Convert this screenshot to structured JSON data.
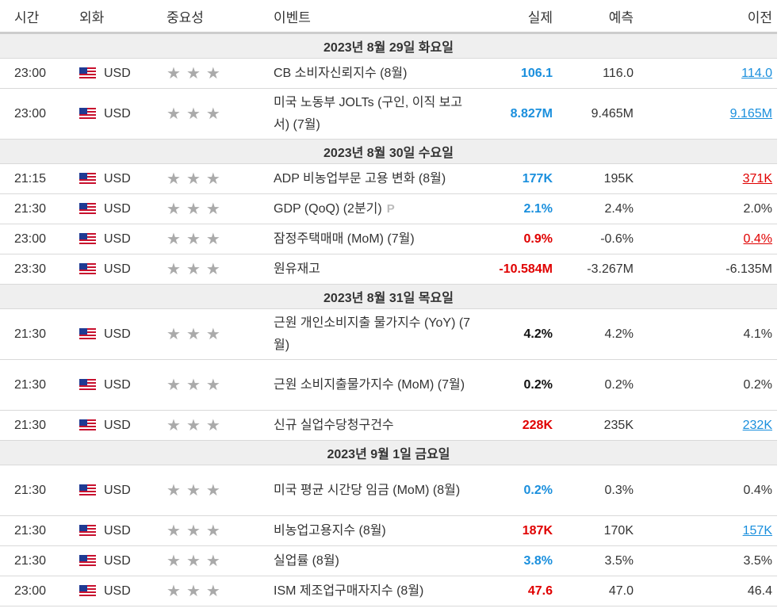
{
  "header": {
    "time": "시간",
    "currency": "외화",
    "importance": "중요성",
    "event": "이벤트",
    "actual": "실제",
    "forecast": "예측",
    "previous": "이전"
  },
  "days": [
    {
      "label": "2023년 8월 29일 화요일",
      "events": [
        {
          "time": "23:00",
          "currency": "USD",
          "event": "CB 소비자신뢰지수 (8월)",
          "actual": "106.1",
          "actual_color": "blue",
          "forecast": "116.0",
          "previous": "114.0",
          "previous_style": "prev-up"
        },
        {
          "time": "23:00",
          "currency": "USD",
          "event": "미국 노동부 JOLTs (구인, 이직 보고서) (7월)",
          "actual": "8.827M",
          "actual_color": "blue",
          "forecast": "9.465M",
          "previous": "9.165M",
          "previous_style": "prev-up",
          "tall": true
        }
      ]
    },
    {
      "label": "2023년 8월 30일 수요일",
      "events": [
        {
          "time": "21:15",
          "currency": "USD",
          "event": "ADP 비농업부문 고용 변화 (8월)",
          "actual": "177K",
          "actual_color": "blue",
          "forecast": "195K",
          "previous": "371K",
          "previous_style": "prev-down"
        },
        {
          "time": "21:30",
          "currency": "USD",
          "event": "GDP (QoQ) (2분기)",
          "actual": "2.1%",
          "actual_color": "blue",
          "forecast": "2.4%",
          "previous": "2.0%",
          "previous_style": "plain",
          "prelim": "P"
        },
        {
          "time": "23:00",
          "currency": "USD",
          "event": "잠정주택매매 (MoM) (7월)",
          "actual": "0.9%",
          "actual_color": "red",
          "forecast": "-0.6%",
          "previous": "0.4%",
          "previous_style": "prev-down"
        },
        {
          "time": "23:30",
          "currency": "USD",
          "event": "원유재고",
          "actual": "-10.584M",
          "actual_color": "red",
          "forecast": "-3.267M",
          "previous": "-6.135M",
          "previous_style": "plain"
        }
      ]
    },
    {
      "label": "2023년 8월 31일 목요일",
      "events": [
        {
          "time": "21:30",
          "currency": "USD",
          "event": "근원 개인소비지출 물가지수 (YoY) (7월)",
          "actual": "4.2%",
          "actual_color": "black",
          "forecast": "4.2%",
          "previous": "4.1%",
          "previous_style": "plain",
          "tall": true
        },
        {
          "time": "21:30",
          "currency": "USD",
          "event": "근원 소비지출물가지수 (MoM) (7월)",
          "actual": "0.2%",
          "actual_color": "black",
          "forecast": "0.2%",
          "previous": "0.2%",
          "previous_style": "plain",
          "tall": true
        },
        {
          "time": "21:30",
          "currency": "USD",
          "event": "신규 실업수당청구건수",
          "actual": "228K",
          "actual_color": "red",
          "forecast": "235K",
          "previous": "232K",
          "previous_style": "prev-up"
        }
      ]
    },
    {
      "label": "2023년 9월 1일 금요일",
      "events": [
        {
          "time": "21:30",
          "currency": "USD",
          "event": "미국 평균 시간당 임금 (MoM) (8월)",
          "actual": "0.2%",
          "actual_color": "blue",
          "forecast": "0.3%",
          "previous": "0.4%",
          "previous_style": "plain",
          "tall": true
        },
        {
          "time": "21:30",
          "currency": "USD",
          "event": "비농업고용지수 (8월)",
          "actual": "187K",
          "actual_color": "red",
          "forecast": "170K",
          "previous": "157K",
          "previous_style": "prev-up"
        },
        {
          "time": "21:30",
          "currency": "USD",
          "event": "실업률 (8월)",
          "actual": "3.8%",
          "actual_color": "blue",
          "forecast": "3.5%",
          "previous": "3.5%",
          "previous_style": "plain"
        },
        {
          "time": "23:00",
          "currency": "USD",
          "event": "ISM 제조업구매자지수 (8월)",
          "actual": "47.6",
          "actual_color": "red",
          "forecast": "47.0",
          "previous": "46.4",
          "previous_style": "plain"
        }
      ]
    }
  ],
  "importance_stars": 3,
  "colors": {
    "blue": "#1a8fdd",
    "red": "#e00000",
    "day_bg": "#efefef"
  }
}
